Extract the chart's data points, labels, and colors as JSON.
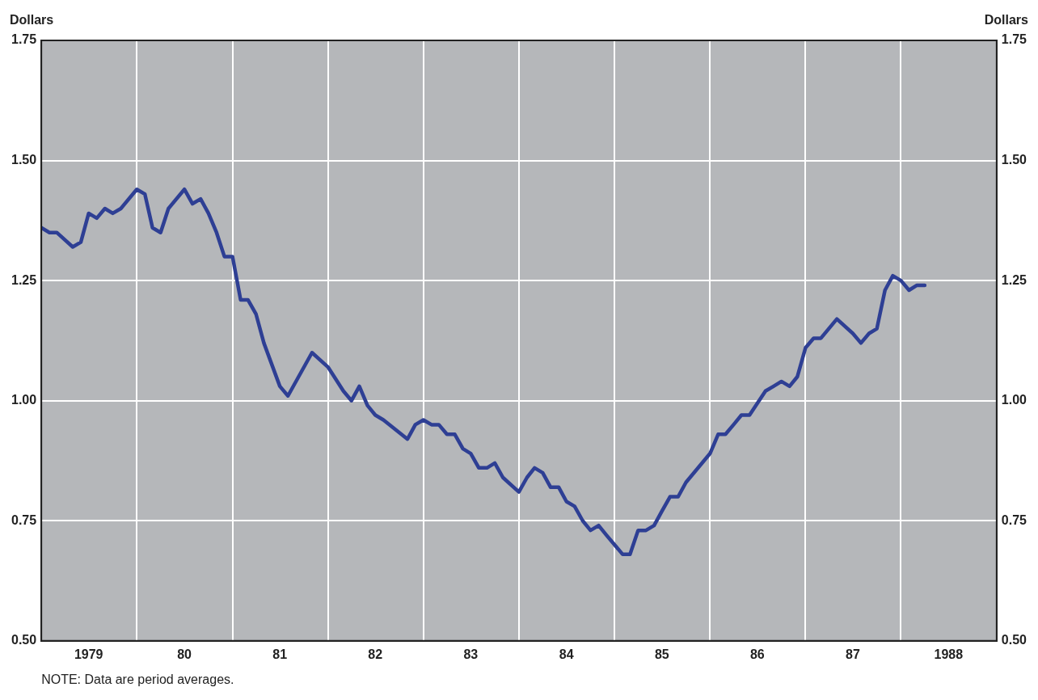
{
  "chart_data": {
    "type": "line",
    "ylabel": "Dollars",
    "y2label": "Dollars",
    "annotations": [
      "NOTE: Data are period averages."
    ],
    "x": [
      "1979-01",
      "1979-02",
      "1979-03",
      "1979-05",
      "1979-06",
      "1979-07",
      "1979-08",
      "1979-09",
      "1979-10",
      "1979-11",
      "1980-01",
      "1980-02",
      "1980-03",
      "1980-04",
      "1980-05",
      "1980-07",
      "1980-08",
      "1980-09",
      "1980-10",
      "1980-11",
      "1980-12",
      "1981-01",
      "1981-02",
      "1981-03",
      "1981-04",
      "1981-05",
      "1981-07",
      "1981-08",
      "1981-11",
      "1982-01",
      "1982-03",
      "1982-04",
      "1982-05",
      "1982-06",
      "1982-07",
      "1982-08",
      "1982-11",
      "1982-12",
      "1983-01",
      "1983-02",
      "1983-03",
      "1983-04",
      "1983-05",
      "1983-06",
      "1983-07",
      "1983-08",
      "1983-09",
      "1983-10",
      "1983-11",
      "1984-01",
      "1984-02",
      "1984-03",
      "1984-04",
      "1984-05",
      "1984-06",
      "1984-07",
      "1984-08",
      "1984-09",
      "1984-10",
      "1984-11",
      "1984-12",
      "1985-01",
      "1985-02",
      "1985-03",
      "1985-04",
      "1985-05",
      "1985-06",
      "1985-07",
      "1985-08",
      "1985-09",
      "1985-10",
      "1986-01",
      "1986-02",
      "1986-03",
      "1986-04",
      "1986-05",
      "1986-06",
      "1986-08",
      "1986-09",
      "1986-10",
      "1986-11",
      "1986-12",
      "1987-01",
      "1987-02",
      "1987-03",
      "1987-05",
      "1987-07",
      "1987-08",
      "1987-09",
      "1987-10",
      "1987-11",
      "1987-12",
      "1988-01",
      "1988-02",
      "1988-03",
      "1988-04"
    ],
    "series": [
      {
        "color": "#2e3f94",
        "values": [
          1.36,
          1.35,
          1.35,
          1.32,
          1.33,
          1.39,
          1.38,
          1.4,
          1.39,
          1.4,
          1.44,
          1.43,
          1.36,
          1.35,
          1.4,
          1.44,
          1.41,
          1.42,
          1.39,
          1.35,
          1.3,
          1.3,
          1.21,
          1.21,
          1.18,
          1.12,
          1.03,
          1.01,
          1.1,
          1.07,
          1.02,
          1.0,
          1.03,
          0.99,
          0.97,
          0.96,
          0.92,
          0.95,
          0.96,
          0.95,
          0.95,
          0.93,
          0.93,
          0.9,
          0.89,
          0.86,
          0.86,
          0.87,
          0.84,
          0.81,
          0.84,
          0.86,
          0.85,
          0.82,
          0.82,
          0.79,
          0.78,
          0.75,
          0.73,
          0.74,
          0.72,
          0.7,
          0.68,
          0.68,
          0.73,
          0.73,
          0.74,
          0.77,
          0.8,
          0.8,
          0.83,
          0.89,
          0.93,
          0.93,
          0.95,
          0.97,
          0.97,
          1.02,
          1.03,
          1.04,
          1.03,
          1.05,
          1.11,
          1.13,
          1.13,
          1.17,
          1.14,
          1.12,
          1.14,
          1.15,
          1.23,
          1.26,
          1.25,
          1.23,
          1.24,
          1.24
        ]
      }
    ],
    "xlim": [
      "1979",
      "1989"
    ],
    "xticks": [
      {
        "value": "1979",
        "label": null
      },
      {
        "value": "1979-07",
        "label": "1979"
      },
      {
        "value": "1980",
        "label": null
      },
      {
        "value": "1980-07",
        "label": "80"
      },
      {
        "value": "1981",
        "label": null
      },
      {
        "value": "1981-07",
        "label": "81"
      },
      {
        "value": "1982",
        "label": null
      },
      {
        "value": "1982-07",
        "label": "82"
      },
      {
        "value": "1983",
        "label": null
      },
      {
        "value": "1983-07",
        "label": "83"
      },
      {
        "value": "1984",
        "label": null
      },
      {
        "value": "1984-07",
        "label": "84"
      },
      {
        "value": "1985",
        "label": null
      },
      {
        "value": "1985-07",
        "label": "85"
      },
      {
        "value": "1986",
        "label": null
      },
      {
        "value": "1986-07",
        "label": "86"
      },
      {
        "value": "1987",
        "label": null
      },
      {
        "value": "1987-07",
        "label": "87"
      },
      {
        "value": "1988",
        "label": null
      },
      {
        "value": "1988-07",
        "label": "1988"
      },
      {
        "value": "1989",
        "label": null
      }
    ],
    "ylim": [
      0.5,
      1.75
    ],
    "yticks": [
      {
        "value": 0.5,
        "label": "0.50"
      },
      {
        "value": 0.75,
        "label": "0.75"
      },
      {
        "value": 1,
        "label": "1.00"
      },
      {
        "value": 1.25,
        "label": "1.25"
      },
      {
        "value": 1.5,
        "label": "1.50"
      },
      {
        "value": 1.75,
        "label": "1.75"
      }
    ],
    "y2lim": [
      0.5,
      1.75
    ],
    "y2ticks": [
      {
        "value": 0.5,
        "label": "0.50"
      },
      {
        "value": 0.75,
        "label": "0.75"
      },
      {
        "value": 1,
        "label": "1.00"
      },
      {
        "value": 1.25,
        "label": "1.25"
      },
      {
        "value": 1.5,
        "label": "1.50"
      },
      {
        "value": 1.75,
        "label": "1.75"
      }
    ],
    "grid": true,
    "legend": false,
    "marker": "none",
    "line_style": "solid"
  }
}
